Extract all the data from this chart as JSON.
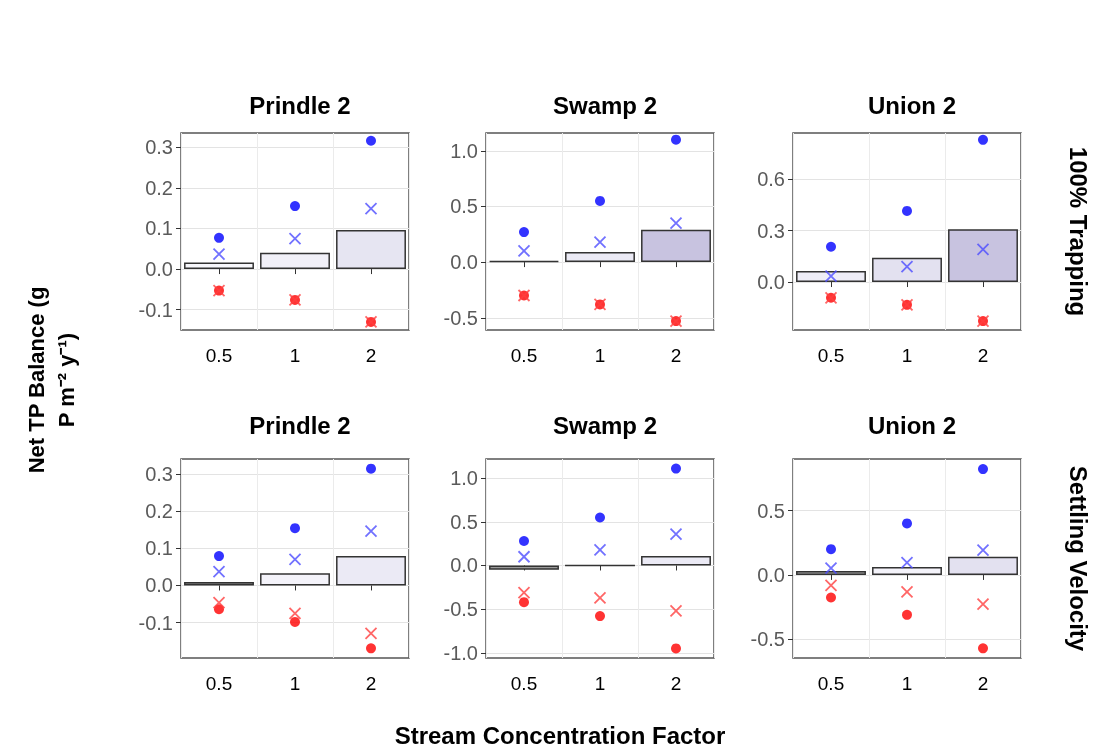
{
  "chart_data": [
    {
      "type": "bar",
      "title": "Prindle 2",
      "ylabel": "Net TP Balance (g P m⁻² y⁻¹)",
      "categories": [
        "0.5",
        "1",
        "2"
      ],
      "ylim": [
        -0.15,
        0.335
      ],
      "yticks": [
        -0.1,
        {
          "value": 0,
          "label": "0.0"
        },
        0.1,
        0.2,
        0.3
      ],
      "grid": true,
      "series": [
        {
          "type": "bar",
          "colors": [
            "#f7f7fb",
            "#f1f0f8",
            "#e6e5f2"
          ],
          "values": [
            0.016,
            0.04,
            0.096
          ]
        },
        {
          "type": "scatter",
          "marker": "circle",
          "color": "#0000ff",
          "x": [
            "0.5",
            "1",
            "2"
          ],
          "values": [
            0.077,
            0.155,
            0.316
          ]
        },
        {
          "type": "scatter",
          "marker": "cross",
          "color": "#4d4dff",
          "x": [
            "0.5",
            "1",
            "2"
          ],
          "values": [
            0.037,
            0.075,
            0.149
          ]
        },
        {
          "type": "scatter",
          "marker": "circle",
          "color": "#ff0000",
          "x": [
            "0.5",
            "1",
            "2"
          ],
          "values": [
            -0.053,
            -0.076,
            -0.13
          ]
        },
        {
          "type": "scatter",
          "marker": "cross",
          "color": "#ff4040",
          "x": [
            "0.5",
            "1",
            "2"
          ],
          "values": [
            -0.053,
            -0.076,
            -0.13
          ]
        }
      ]
    },
    {
      "type": "bar",
      "title": "Swamp 2",
      "categories": [
        "0.5",
        "1",
        "2"
      ],
      "ylim": [
        -0.61,
        1.16
      ],
      "yticks": [
        -0.5,
        {
          "value": 0,
          "label": "0.0"
        },
        0.5,
        {
          "value": 1,
          "label": "1.0"
        }
      ],
      "grid": true,
      "series": [
        {
          "type": "bar",
          "colors": [
            "#333333",
            "#ebeaf5",
            "#c8c3e0"
          ],
          "values": [
            0.01,
            0.09,
            0.29
          ]
        },
        {
          "type": "scatter",
          "marker": "circle",
          "color": "#0000ff",
          "x": [
            "0.5",
            "1",
            "2"
          ],
          "values": [
            0.27,
            0.55,
            1.1
          ]
        },
        {
          "type": "scatter",
          "marker": "cross",
          "color": "#4d4dff",
          "x": [
            "0.5",
            "1",
            "2"
          ],
          "values": [
            0.1,
            0.18,
            0.35
          ]
        },
        {
          "type": "scatter",
          "marker": "circle",
          "color": "#ff0000",
          "x": [
            "0.5",
            "1",
            "2"
          ],
          "values": [
            -0.3,
            -0.38,
            -0.53
          ]
        },
        {
          "type": "scatter",
          "marker": "cross",
          "color": "#ff4040",
          "x": [
            "0.5",
            "1",
            "2"
          ],
          "values": [
            -0.3,
            -0.38,
            -0.53
          ]
        }
      ]
    },
    {
      "type": "bar",
      "title": "Union 2",
      "annotations": [
        "100% Trapping"
      ],
      "categories": [
        "0.5",
        "1",
        "2"
      ],
      "ylim": [
        -0.28,
        0.87
      ],
      "yticks": [
        {
          "value": 0,
          "label": "0.0"
        },
        0.3,
        0.6
      ],
      "grid": true,
      "series": [
        {
          "type": "bar",
          "colors": [
            "#eeedf7",
            "#e3e1f0",
            "#c8c3e0"
          ],
          "values": [
            0.064,
            0.142,
            0.308
          ]
        },
        {
          "type": "scatter",
          "marker": "circle",
          "color": "#0000ff",
          "x": [
            "0.5",
            "1",
            "2"
          ],
          "values": [
            0.206,
            0.415,
            0.83
          ]
        },
        {
          "type": "scatter",
          "marker": "cross",
          "color": "#4d4dff",
          "x": [
            "0.5",
            "1",
            "2"
          ],
          "values": [
            0.035,
            0.09,
            0.19
          ]
        },
        {
          "type": "scatter",
          "marker": "circle",
          "color": "#ff0000",
          "x": [
            "0.5",
            "1",
            "2"
          ],
          "values": [
            -0.092,
            -0.133,
            -0.228
          ]
        },
        {
          "type": "scatter",
          "marker": "cross",
          "color": "#ff4040",
          "x": [
            "0.5",
            "1",
            "2"
          ],
          "values": [
            -0.092,
            -0.133,
            -0.228
          ]
        }
      ]
    },
    {
      "type": "bar",
      "title": "Prindle 2",
      "categories": [
        "0.5",
        "1",
        "2"
      ],
      "ylim": [
        -0.195,
        0.34
      ],
      "yticks": [
        -0.1,
        {
          "value": 0,
          "label": "0.0"
        },
        0.1,
        0.2,
        0.3
      ],
      "grid": true,
      "series": [
        {
          "type": "bar",
          "colors": [
            "#8c8c8c",
            "#f4f3fa",
            "#ebeaf5"
          ],
          "values": [
            0.009,
            0.033,
            0.079
          ]
        },
        {
          "type": "scatter",
          "marker": "circle",
          "color": "#0000ff",
          "x": [
            "0.5",
            "1",
            "2"
          ],
          "values": [
            0.079,
            0.154,
            0.314
          ]
        },
        {
          "type": "scatter",
          "marker": "cross",
          "color": "#4d4dff",
          "x": [
            "0.5",
            "1",
            "2"
          ],
          "values": [
            0.037,
            0.07,
            0.146
          ]
        },
        {
          "type": "scatter",
          "marker": "circle",
          "color": "#ff0000",
          "x": [
            "0.5",
            "1",
            "2"
          ],
          "values": [
            -0.064,
            -0.098,
            -0.169
          ]
        },
        {
          "type": "scatter",
          "marker": "cross",
          "color": "#ff4040",
          "x": [
            "0.5",
            "1",
            "2"
          ],
          "values": [
            -0.046,
            -0.075,
            -0.129
          ]
        }
      ]
    },
    {
      "type": "bar",
      "title": "Swamp 2",
      "xlabel": "Stream Concentration Factor",
      "categories": [
        "0.5",
        "1",
        "2"
      ],
      "ylim": [
        -1.06,
        1.22
      ],
      "yticks": [
        {
          "value": -1,
          "label": "-1.0"
        },
        -0.5,
        {
          "value": 0,
          "label": "0.0"
        },
        0.5,
        {
          "value": 1,
          "label": "1.0"
        }
      ],
      "grid": true,
      "series": [
        {
          "type": "bar",
          "colors": [
            "#9a9a9a",
            "#333333",
            "#ebeaf5"
          ],
          "values": [
            -0.05,
            0,
            0.11
          ]
        },
        {
          "type": "scatter",
          "marker": "circle",
          "color": "#0000ff",
          "x": [
            "0.5",
            "1",
            "2"
          ],
          "values": [
            0.28,
            0.55,
            1.11
          ]
        },
        {
          "type": "scatter",
          "marker": "cross",
          "color": "#4d4dff",
          "x": [
            "0.5",
            "1",
            "2"
          ],
          "values": [
            0.1,
            0.18,
            0.36
          ]
        },
        {
          "type": "scatter",
          "marker": "circle",
          "color": "#ff0000",
          "x": [
            "0.5",
            "1",
            "2"
          ],
          "values": [
            -0.42,
            -0.58,
            -0.95
          ]
        },
        {
          "type": "scatter",
          "marker": "cross",
          "color": "#ff4040",
          "x": [
            "0.5",
            "1",
            "2"
          ],
          "values": [
            -0.31,
            -0.37,
            -0.52
          ]
        }
      ]
    },
    {
      "type": "bar",
      "title": "Union 2",
      "annotations": [
        "Settling Velocity"
      ],
      "categories": [
        "0.5",
        "1",
        "2"
      ],
      "ylim": [
        -0.645,
        0.9
      ],
      "yticks": [
        -0.5,
        {
          "value": 0,
          "label": "0.0"
        },
        0.5
      ],
      "grid": true,
      "series": [
        {
          "type": "bar",
          "colors": [
            "#a6a6a6",
            "#f4f3fa",
            "#e3e1f0"
          ],
          "values": [
            0.031,
            0.062,
            0.142
          ]
        },
        {
          "type": "scatter",
          "marker": "circle",
          "color": "#0000ff",
          "x": [
            "0.5",
            "1",
            "2"
          ],
          "values": [
            0.2,
            0.4,
            0.822
          ]
        },
        {
          "type": "scatter",
          "marker": "cross",
          "color": "#4d4dff",
          "x": [
            "0.5",
            "1",
            "2"
          ],
          "values": [
            0.052,
            0.095,
            0.193
          ]
        },
        {
          "type": "scatter",
          "marker": "circle",
          "color": "#ff0000",
          "x": [
            "0.5",
            "1",
            "2"
          ],
          "values": [
            -0.175,
            -0.31,
            -0.57
          ]
        },
        {
          "type": "scatter",
          "marker": "cross",
          "color": "#ff4040",
          "x": [
            "0.5",
            "1",
            "2"
          ],
          "values": [
            -0.082,
            -0.131,
            -0.227
          ]
        }
      ]
    }
  ]
}
